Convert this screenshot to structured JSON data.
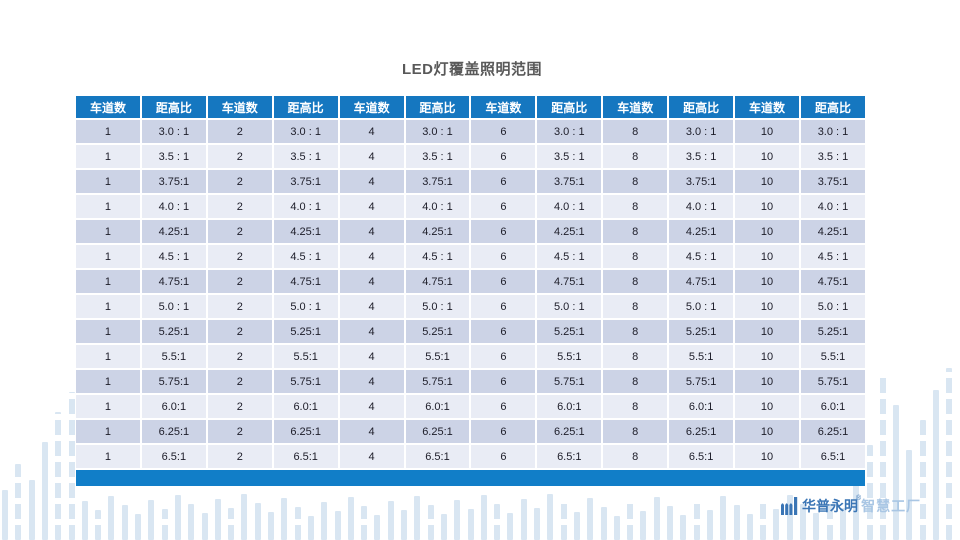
{
  "title": "LED灯覆盖照明范围",
  "table": {
    "lanes_header": "车道数",
    "ratio_header": "距高比",
    "lane_counts": [
      "1",
      "2",
      "4",
      "6",
      "8",
      "10"
    ],
    "ratios": [
      "3.0 : 1",
      "3.5 : 1",
      "3.75:1",
      "4.0 : 1",
      "4.25:1",
      "4.5 : 1",
      "4.75:1",
      "5.0 : 1",
      "5.25:1",
      "5.5:1",
      "5.75:1",
      "6.0:1",
      "6.25:1",
      "6.5:1"
    ]
  },
  "logo": {
    "brand": "华普永明",
    "reg_mark": "®",
    "suffix": "智慧工厂"
  },
  "colors": {
    "header_blue": "#1577c0",
    "footer_bar_blue": "#117ec8",
    "band_dark": "#ccd3e6",
    "band_light": "#e9ecf5",
    "title_gray": "#595959",
    "logo_blue": "#3a75b5",
    "logo_light_blue": "#a9c6e4",
    "decor_bar_blue": "#d9e6f2"
  }
}
